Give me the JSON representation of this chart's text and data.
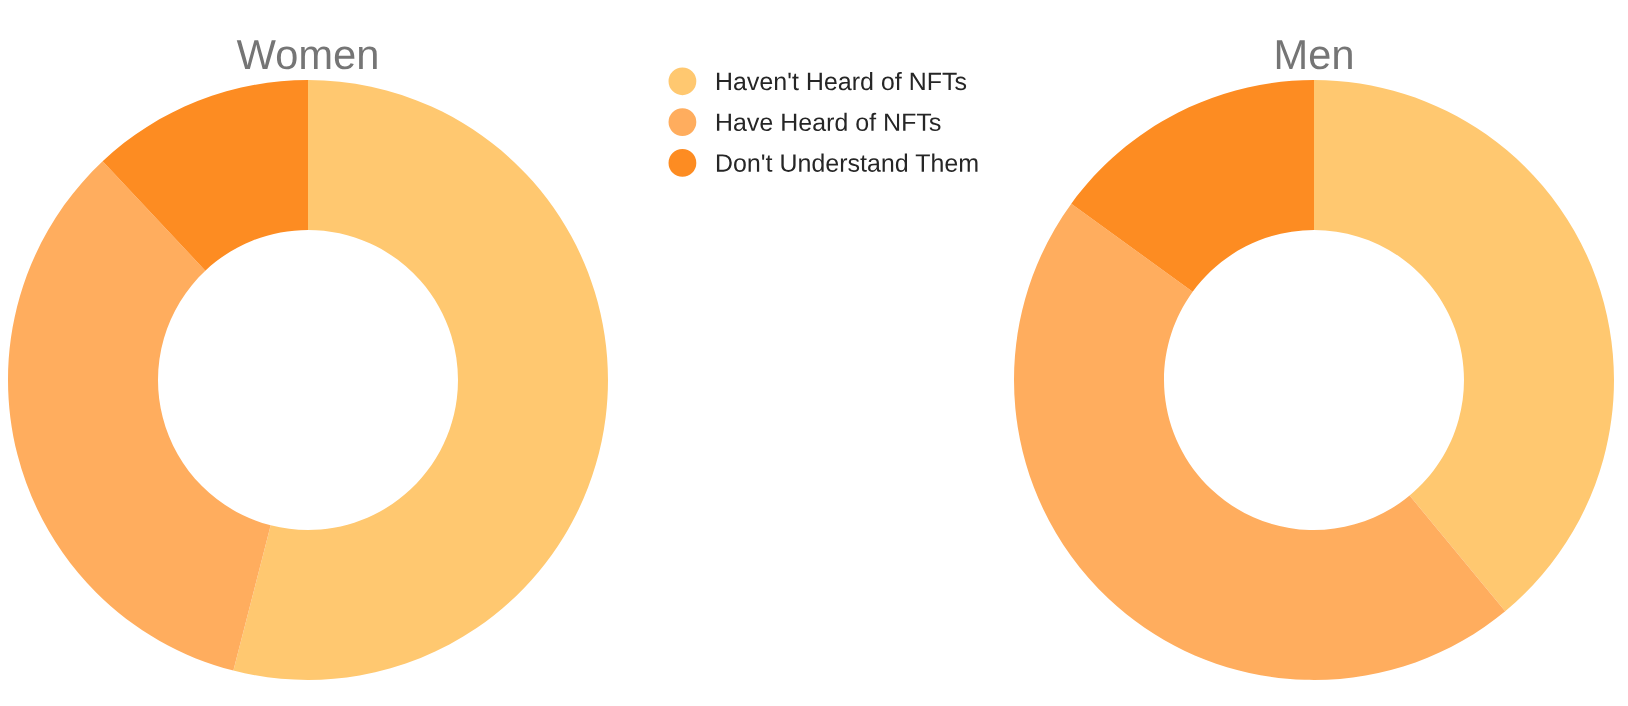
{
  "chart_data": [
    {
      "type": "donut",
      "title": "Women",
      "categories": [
        "Haven't Heard of NFTs",
        "Have Heard of NFTs",
        "Don't Understand Them"
      ],
      "values": [
        54,
        34,
        12
      ],
      "colors": [
        "#ffc870",
        "#ffad5e",
        "#fd8c22"
      ],
      "legend": "right"
    },
    {
      "type": "donut",
      "title": "Men",
      "categories": [
        null,
        null,
        null
      ],
      "values": [
        39,
        46,
        15
      ],
      "colors": [
        "#ffc870",
        "#ffad5e",
        "#fd8c22"
      ]
    }
  ]
}
